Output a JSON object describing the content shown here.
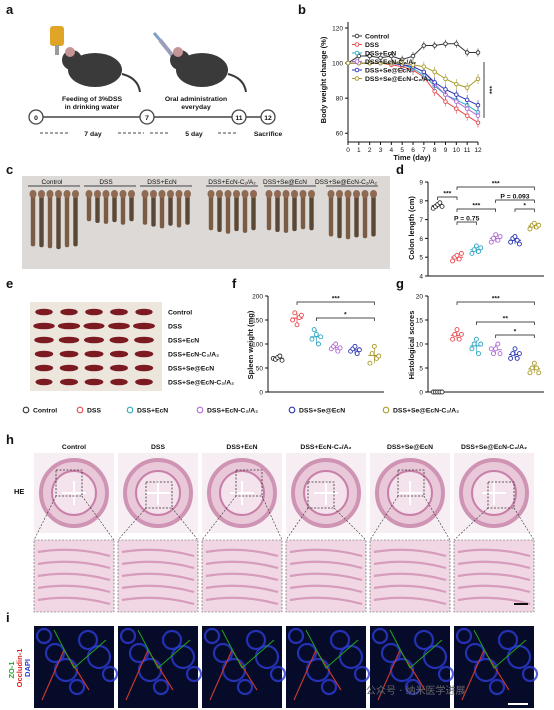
{
  "panel_letters": {
    "a": "a",
    "b": "b",
    "c": "c",
    "d": "d",
    "e": "e",
    "f": "f",
    "g": "g",
    "h": "h",
    "i": "i"
  },
  "timeline": {
    "points": [
      "0",
      "7",
      "11",
      "12"
    ],
    "step1": [
      "Feeding of 3%DSS",
      "in drinking water"
    ],
    "step2": [
      "Oral administration",
      "everyday"
    ],
    "dur1": "7 day",
    "dur2": "5 day",
    "end": "Sacrifice"
  },
  "groups": [
    "Control",
    "DSS",
    "DSS+EcN",
    "DSS+EcN-C₂/A₂",
    "DSS+Se@EcN",
    "DSS+Se@EcN-C₂/A₂"
  ],
  "colors": {
    "Control": "#333333",
    "DSS": "#e8484c",
    "DSS+EcN": "#2fa8c4",
    "DSS+EcN-C2/A2": "#b36ad8",
    "DSS+Se@EcN": "#2a35b3",
    "DSS+Se@EcN-C2/A2": "#a89a2a"
  },
  "chart_data": [
    {
      "id": "b",
      "type": "line",
      "xlabel": "Time (day)",
      "ylabel": "Body weight change (%)",
      "x": [
        0,
        1,
        2,
        3,
        4,
        5,
        6,
        7,
        8,
        9,
        10,
        11,
        12
      ],
      "xlim": [
        0,
        12
      ],
      "ylim": [
        55,
        120
      ],
      "yticks": [
        60,
        80,
        100,
        120
      ],
      "series": [
        {
          "name": "Control",
          "values": [
            100,
            104,
            104,
            103,
            104,
            102,
            104,
            110,
            110,
            111,
            111,
            106,
            106
          ]
        },
        {
          "name": "DSS",
          "values": [
            100,
            100,
            100,
            100,
            99,
            98,
            96,
            92,
            84,
            78,
            74,
            70,
            66
          ]
        },
        {
          "name": "DSS+EcN",
          "values": [
            100,
            100,
            100,
            100,
            100,
            99,
            97,
            93,
            87,
            82,
            79,
            76,
            72
          ]
        },
        {
          "name": "DSS+EcN-C₂/A₂",
          "values": [
            100,
            100,
            100,
            100,
            100,
            99,
            98,
            95,
            88,
            82,
            78,
            74,
            70
          ]
        },
        {
          "name": "DSS+Se@EcN",
          "values": [
            100,
            100,
            100,
            100,
            100,
            99,
            98,
            95,
            89,
            85,
            82,
            79,
            76
          ]
        },
        {
          "name": "DSS+Se@EcN-C₂/A₂",
          "values": [
            100,
            100,
            100,
            100,
            100,
            100,
            99,
            98,
            95,
            91,
            88,
            86,
            91
          ]
        }
      ],
      "annotations": [
        "***"
      ]
    },
    {
      "id": "d",
      "type": "scatter",
      "ylabel": "Colon length (cm)",
      "ylim": [
        4,
        9
      ],
      "yticks": [
        4,
        5,
        6,
        7,
        8,
        9
      ],
      "groups": [
        {
          "name": "Control",
          "values": [
            7.6,
            7.7,
            7.8,
            7.9,
            7.7
          ]
        },
        {
          "name": "DSS",
          "values": [
            4.8,
            5.0,
            5.1,
            4.9,
            5.2
          ]
        },
        {
          "name": "DSS+EcN",
          "values": [
            5.2,
            5.4,
            5.6,
            5.3,
            5.5
          ]
        },
        {
          "name": "DSS+EcN-C₂/A₂",
          "values": [
            5.8,
            6.0,
            6.2,
            5.9,
            6.1
          ]
        },
        {
          "name": "DSS+Se@EcN",
          "values": [
            5.8,
            6.0,
            6.1,
            5.9,
            5.7
          ]
        },
        {
          "name": "DSS+Se@EcN-C₂/A₂",
          "values": [
            6.5,
            6.7,
            6.8,
            6.6,
            6.7
          ]
        }
      ],
      "annotations": [
        "***",
        "***",
        "***",
        "*",
        "P = 0.75",
        "P = 0.093"
      ]
    },
    {
      "id": "f",
      "type": "scatter",
      "ylabel": "Spleen weight (mg)",
      "ylim": [
        0,
        200
      ],
      "yticks": [
        0,
        50,
        100,
        150,
        200
      ],
      "groups": [
        {
          "name": "Control",
          "values": [
            70,
            68,
            72,
            75,
            66
          ]
        },
        {
          "name": "DSS",
          "values": [
            150,
            165,
            140,
            155,
            160
          ]
        },
        {
          "name": "DSS+EcN",
          "values": [
            110,
            130,
            120,
            100,
            115
          ]
        },
        {
          "name": "DSS+EcN-C₂/A₂",
          "values": [
            90,
            95,
            100,
            85,
            92
          ]
        },
        {
          "name": "DSS+Se@EcN",
          "values": [
            85,
            90,
            95,
            80,
            88
          ]
        },
        {
          "name": "DSS+Se@EcN-C₂/A₂",
          "values": [
            60,
            80,
            95,
            70,
            75
          ]
        }
      ],
      "annotations": [
        "***",
        "*"
      ]
    },
    {
      "id": "g",
      "type": "scatter",
      "ylabel": "Histological scores",
      "ylim": [
        0,
        20
      ],
      "yticks": [
        0,
        5,
        10,
        15,
        20
      ],
      "groups": [
        {
          "name": "Control",
          "values": [
            0,
            0,
            0,
            0,
            0
          ]
        },
        {
          "name": "DSS",
          "values": [
            11,
            12,
            13,
            11,
            12
          ]
        },
        {
          "name": "DSS+EcN",
          "values": [
            9,
            10,
            11,
            8,
            10
          ]
        },
        {
          "name": "DSS+EcN-C₂/A₂",
          "values": [
            9,
            8,
            9,
            10,
            8
          ]
        },
        {
          "name": "DSS+Se@EcN",
          "values": [
            7,
            8,
            9,
            7,
            8
          ]
        },
        {
          "name": "DSS+Se@EcN-C₂/A₂",
          "values": [
            4,
            5,
            6,
            5,
            4
          ]
        }
      ],
      "annotations": [
        "***",
        "**",
        "*"
      ]
    }
  ],
  "photo_labels": {
    "he": "HE",
    "zo1": "ZO-1",
    "occludin": "Occludin-1",
    "dapi": "DAPI"
  },
  "watermark": "公众号 · 纳米医学进展"
}
